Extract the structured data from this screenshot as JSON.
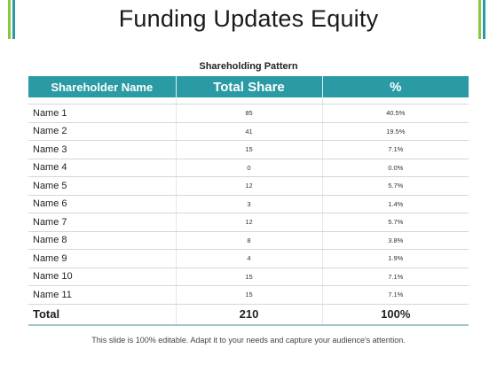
{
  "slide": {
    "title": "Funding Updates Equity",
    "footnote": "This slide is 100% editable. Adapt it to your needs and capture your audience's attention."
  },
  "colors": {
    "header_bg": "#2a9aa4",
    "accent_bar_green": "#8cc63f",
    "accent_bar_teal": "#2a9aa4"
  },
  "table": {
    "caption": "Shareholding Pattern",
    "headers": [
      "Shareholder  Name",
      "Total Share",
      "%"
    ],
    "rows": [
      {
        "name": "Name 1",
        "share": "85",
        "pct": "40.5%"
      },
      {
        "name": "Name 2",
        "share": "41",
        "pct": "19.5%"
      },
      {
        "name": "Name 3",
        "share": "15",
        "pct": "7.1%"
      },
      {
        "name": "Name 4",
        "share": "0",
        "pct": "0.0%"
      },
      {
        "name": "Name 5",
        "share": "12",
        "pct": "5.7%"
      },
      {
        "name": "Name 6",
        "share": "3",
        "pct": "1.4%"
      },
      {
        "name": "Name 7",
        "share": "12",
        "pct": "5.7%"
      },
      {
        "name": "Name 8",
        "share": "8",
        "pct": "3.8%"
      },
      {
        "name": "Name 9",
        "share": "4",
        "pct": "1.9%"
      },
      {
        "name": "Name 10",
        "share": "15",
        "pct": "7.1%"
      },
      {
        "name": "Name 11",
        "share": "15",
        "pct": "7.1%"
      }
    ],
    "total": {
      "label": "Total",
      "share": "210",
      "pct": "100%"
    }
  }
}
